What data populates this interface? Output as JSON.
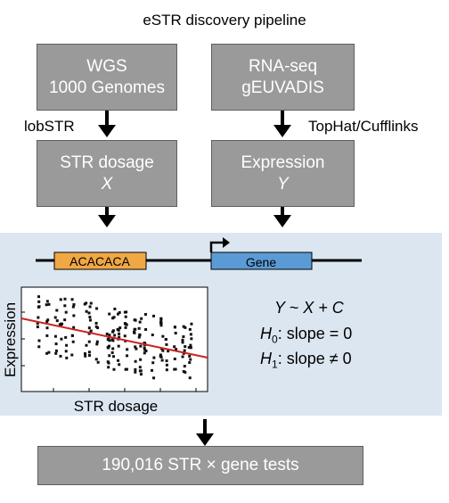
{
  "title": "eSTR discovery pipeline",
  "boxes": {
    "wgs": {
      "line1": "WGS",
      "line2": "1000 Genomes"
    },
    "rnaseq": {
      "line1": "RNA-seq",
      "line2": "gEUVADIS"
    },
    "str_dosage": {
      "line1": "STR dosage",
      "line2": "X"
    },
    "expression": {
      "line1": "Expression",
      "line2": "Y"
    },
    "final": {
      "label": "190,016 STR × gene tests"
    }
  },
  "tools": {
    "left": "lobSTR",
    "right": "TopHat/Cufflinks"
  },
  "gene_track": {
    "repeat_label": "ACACACA",
    "gene_label": "Gene"
  },
  "model": {
    "eq1": "Y ~ X + C",
    "eq2_h": "H",
    "eq2_sub": "0",
    "eq2_rest": ": slope = 0",
    "eq3_h": "H",
    "eq3_sub": "1",
    "eq3_rest": ": slope ≠ 0"
  },
  "scatter": {
    "xlabel": "STR dosage",
    "ylabel": "Expression"
  },
  "colors": {
    "box_fill": "#9a9a9a",
    "panel_bg": "#dce6f1",
    "repeat": "#f0a844",
    "gene": "#5b9bd5",
    "fit_line": "#cc2222"
  }
}
